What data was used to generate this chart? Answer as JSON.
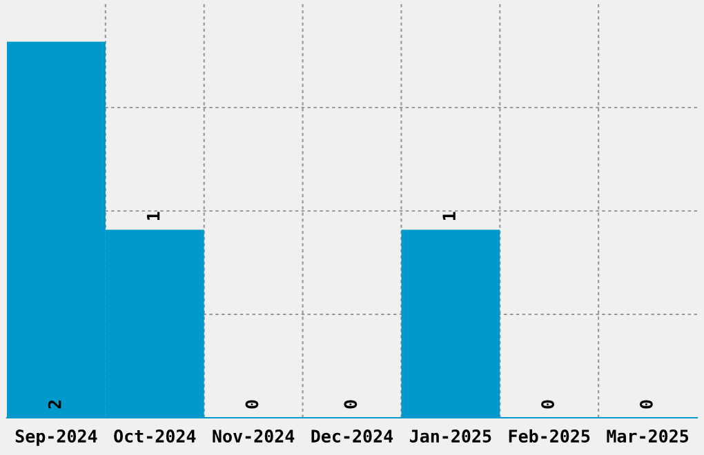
{
  "chart_data": {
    "type": "bar",
    "categories": [
      "Sep-2024",
      "Oct-2024",
      "Nov-2024",
      "Dec-2024",
      "Jan-2025",
      "Feb-2025",
      "Mar-2025"
    ],
    "values": [
      2,
      1,
      0,
      0,
      1,
      0,
      0
    ],
    "color": "#0099cc",
    "ylim": [
      0,
      2.2
    ],
    "yticks": [
      {
        "value": 0.55,
        "label": null
      },
      {
        "value": 1.1,
        "label": null
      },
      {
        "value": 1.65,
        "label": null
      }
    ],
    "tick_labels": "x",
    "data_labels": true,
    "grid": true
  }
}
